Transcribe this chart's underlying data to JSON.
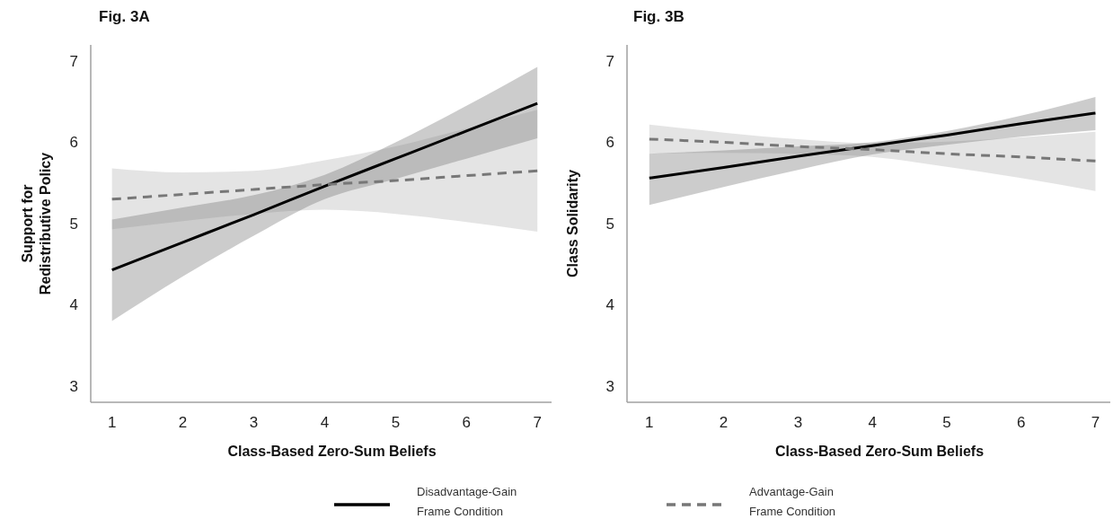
{
  "chart_data": [
    {
      "type": "line",
      "title": "Fig. 3A",
      "xlabel": "Class-Based Zero-Sum Beliefs",
      "ylabel": "Support for\nRedistributive Policy",
      "x": [
        1,
        2,
        3,
        4,
        5,
        6,
        7
      ],
      "xlim": [
        0.7,
        7.2
      ],
      "xticks": [
        1,
        2,
        3,
        4,
        5,
        6,
        7
      ],
      "ylim": [
        2.8,
        7.2
      ],
      "yticks": [
        3,
        4,
        5,
        6,
        7
      ],
      "grid": false,
      "legend": "bottom",
      "series": [
        {
          "name": "Disadvantage-Gain\nFrame Condition",
          "color": "#000000",
          "line_style": "solid",
          "values": [
            4.43,
            4.77,
            5.11,
            5.46,
            5.8,
            6.14,
            6.48
          ],
          "lower": [
            3.8,
            4.35,
            4.85,
            5.3,
            5.55,
            5.8,
            6.05
          ],
          "upper": [
            5.05,
            5.2,
            5.35,
            5.6,
            6.0,
            6.45,
            6.93
          ]
        },
        {
          "name": "Advantage-Gain\nFrame Condition",
          "color": "#777777",
          "line_style": "dashed",
          "values": [
            5.3,
            5.36,
            5.42,
            5.48,
            5.53,
            5.59,
            5.65
          ],
          "lower": [
            4.93,
            5.03,
            5.12,
            5.17,
            5.12,
            5.02,
            4.9
          ],
          "upper": [
            5.68,
            5.63,
            5.65,
            5.78,
            5.95,
            6.17,
            6.4
          ]
        }
      ]
    },
    {
      "type": "line",
      "title": "Fig. 3B",
      "xlabel": "Class-Based Zero-Sum Beliefs",
      "ylabel": "Class Solidarity",
      "x": [
        1,
        2,
        3,
        4,
        5,
        6,
        7
      ],
      "xlim": [
        0.7,
        7.2
      ],
      "xticks": [
        1,
        2,
        3,
        4,
        5,
        6,
        7
      ],
      "ylim": [
        2.8,
        7.2
      ],
      "yticks": [
        3,
        4,
        5,
        6,
        7
      ],
      "grid": false,
      "series": [
        {
          "color": "#000000",
          "line_style": "solid",
          "values": [
            5.56,
            5.69,
            5.83,
            5.96,
            6.09,
            6.23,
            6.36
          ],
          "lower": [
            5.23,
            5.45,
            5.66,
            5.85,
            5.97,
            6.07,
            6.15
          ],
          "upper": [
            5.86,
            5.9,
            5.95,
            6.0,
            6.14,
            6.33,
            6.56
          ]
        },
        {
          "color": "#777777",
          "line_style": "dashed",
          "values": [
            6.04,
            6.0,
            5.95,
            5.91,
            5.86,
            5.82,
            5.77
          ],
          "lower": [
            5.86,
            5.87,
            5.86,
            5.82,
            5.7,
            5.56,
            5.4
          ],
          "upper": [
            6.22,
            6.12,
            6.04,
            5.99,
            6.01,
            6.06,
            6.13
          ]
        }
      ]
    }
  ]
}
